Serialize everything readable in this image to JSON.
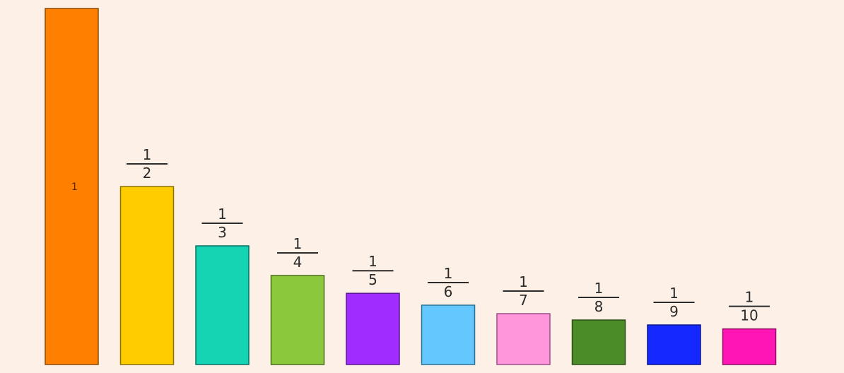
{
  "chart_data": {
    "type": "bar",
    "categories": [
      "1",
      "1/2",
      "1/3",
      "1/4",
      "1/5",
      "1/6",
      "1/7",
      "1/8",
      "1/9",
      "1/10"
    ],
    "values": [
      1,
      0.5,
      0.3333,
      0.25,
      0.2,
      0.1667,
      0.1429,
      0.125,
      0.1111,
      0.1
    ],
    "labels": [
      {
        "numerator": "",
        "denominator": "",
        "inside": "1"
      },
      {
        "numerator": "1",
        "denominator": "2"
      },
      {
        "numerator": "1",
        "denominator": "3"
      },
      {
        "numerator": "1",
        "denominator": "4"
      },
      {
        "numerator": "1",
        "denominator": "5"
      },
      {
        "numerator": "1",
        "denominator": "6"
      },
      {
        "numerator": "1",
        "denominator": "7"
      },
      {
        "numerator": "1",
        "denominator": "8"
      },
      {
        "numerator": "1",
        "denominator": "9"
      },
      {
        "numerator": "1",
        "denominator": "10"
      }
    ],
    "colors": [
      "#ff8000",
      "#ffcc00",
      "#14d4b4",
      "#8cc83c",
      "#a02cff",
      "#64c8ff",
      "#ff96dc",
      "#4b8c28",
      "#1428ff",
      "#ff14b4"
    ],
    "stroke_colors": [
      "#8a4a00",
      "#8a7000",
      "#0a7060",
      "#4a6e1a",
      "#5a1890",
      "#2a7090",
      "#a05088",
      "#2a5016",
      "#0a1690",
      "#900a64"
    ],
    "ylim": [
      0,
      1
    ],
    "title": "",
    "xlabel": "",
    "ylabel": "",
    "grid": false
  }
}
